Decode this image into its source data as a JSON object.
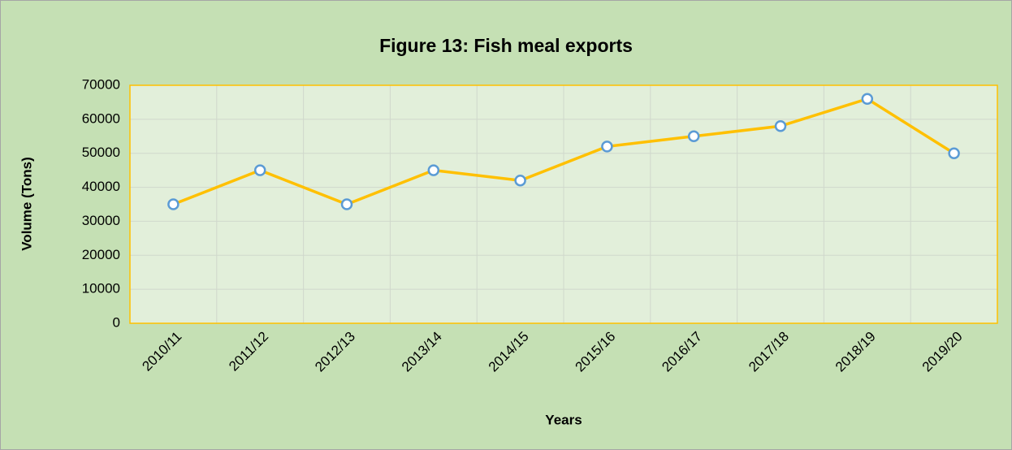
{
  "chart_data": {
    "type": "line",
    "title": "Figure 13: Fish meal exports",
    "x_label": "Years",
    "y_label": "Volume (Tons)",
    "categories": [
      "2010/11",
      "2011/12",
      "2012/13",
      "2013/14",
      "2014/15",
      "2015/16",
      "2016/17",
      "2017/18",
      "2018/19",
      "2019/20"
    ],
    "series": [
      {
        "name": "Fish meal exports",
        "color": "#ffc000",
        "marker_edge": "#5b9bd5",
        "values": [
          35000,
          45000,
          35000,
          45000,
          42000,
          52000,
          55000,
          58000,
          66000,
          50000
        ]
      }
    ],
    "ylim": [
      0,
      70000
    ],
    "yticks": [
      0,
      10000,
      20000,
      30000,
      40000,
      50000,
      60000,
      70000
    ],
    "grid": true
  }
}
